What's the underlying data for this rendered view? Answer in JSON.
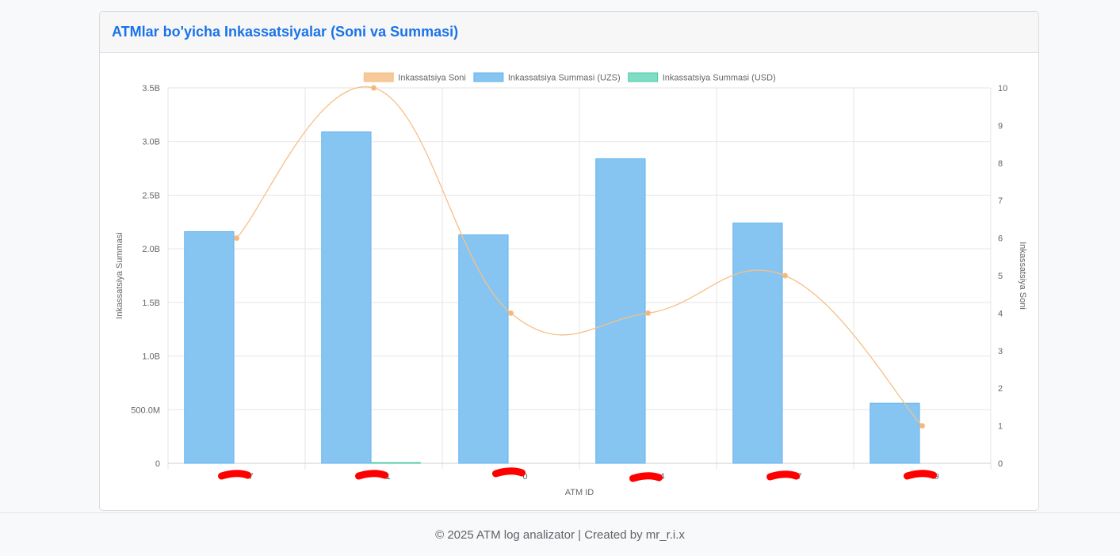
{
  "card": {
    "title": "ATMlar bo'yicha Inkassatsiyalar (Soni va Summasi)"
  },
  "footer": {
    "text": "© 2025 ATM log analizator | Created by mr_r.i.x"
  },
  "colors": {
    "uzs_fill": "#86c5f1",
    "uzs_stroke": "#64b3ec",
    "usd_fill": "#7fdcc5",
    "usd_stroke": "#4ecba9",
    "count_line": "#f6bf86",
    "count_point": "#f5b77a",
    "redaction": "#ff0000",
    "grid": "#e5e5e5",
    "text": "#666666"
  },
  "chart_data": {
    "type": "bar",
    "title": "",
    "xlabel": "ATM ID",
    "ylabel_left": "Inkassatsiya Summasi",
    "ylabel_right": "Inkassatsiya Soni",
    "categories": [
      "7",
      "1",
      "0",
      "4",
      "7",
      "9"
    ],
    "y_left": {
      "min": 0,
      "max": 3500000000,
      "ticks": [
        "0",
        "500.0M",
        "1.0B",
        "1.5B",
        "2.0B",
        "2.5B",
        "3.0B",
        "3.5B"
      ]
    },
    "y_right": {
      "min": 0,
      "max": 10,
      "ticks": [
        "0",
        "1",
        "2",
        "3",
        "4",
        "5",
        "6",
        "7",
        "8",
        "9",
        "10"
      ]
    },
    "grid": true,
    "legend_position": "top",
    "series": [
      {
        "name": "Inkassatsiya Soni",
        "type": "line",
        "axis": "right",
        "values": [
          6,
          10,
          4,
          4,
          5,
          1
        ]
      },
      {
        "name": "Inkassatsiya Summasi (UZS)",
        "type": "bar",
        "axis": "left",
        "values": [
          2160000000,
          3090000000,
          2130000000,
          2840000000,
          2240000000,
          560000000
        ]
      },
      {
        "name": "Inkassatsiya Summasi (USD)",
        "type": "bar",
        "axis": "left",
        "values": [
          0,
          2000,
          0,
          0,
          0,
          0
        ]
      }
    ]
  }
}
